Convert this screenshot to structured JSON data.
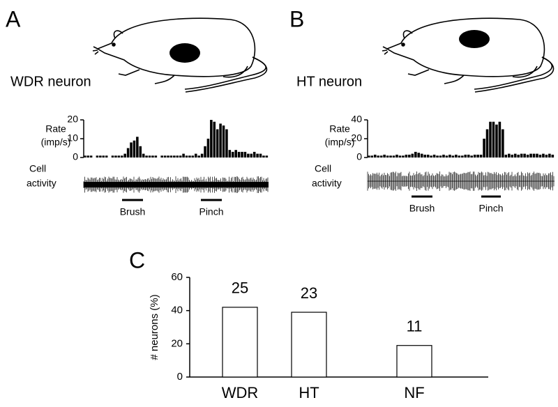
{
  "chart_data": [
    {
      "type": "bar",
      "panel": "A",
      "label": "WDR neuron",
      "ylabel": [
        "Rate",
        "(imp/s)"
      ],
      "trace_label": [
        "Cell",
        "activity"
      ],
      "stimuli": [
        "Brush",
        "Pinch"
      ],
      "color": "#000000",
      "values": [
        1,
        1,
        1,
        0,
        1,
        1,
        1,
        1,
        0,
        1,
        1,
        1,
        1,
        2,
        5,
        8,
        9,
        11,
        6,
        2,
        1,
        1,
        1,
        1,
        0,
        1,
        1,
        1,
        1,
        1,
        1,
        1,
        2,
        1,
        1,
        1,
        2,
        1,
        2,
        6,
        10,
        20,
        19,
        15,
        18,
        17,
        15,
        4,
        3,
        4,
        3,
        3,
        3,
        2,
        2,
        3,
        2,
        2,
        1,
        1
      ],
      "ylim": [
        0,
        20
      ],
      "yticks": [
        0,
        10,
        20
      ]
    },
    {
      "type": "bar",
      "panel": "B",
      "label": "HT neuron",
      "ylabel": [
        "Rate",
        "(imp/s)"
      ],
      "trace_label": [
        "Cell",
        "activity"
      ],
      "stimuli": [
        "Brush",
        "Pinch"
      ],
      "color": "#000000",
      "values": [
        2,
        2,
        3,
        2,
        2,
        3,
        2,
        2,
        2,
        3,
        2,
        2,
        3,
        3,
        4,
        6,
        5,
        4,
        3,
        3,
        2,
        3,
        2,
        2,
        3,
        2,
        3,
        2,
        3,
        2,
        2,
        3,
        3,
        2,
        3,
        3,
        3,
        20,
        30,
        38,
        38,
        35,
        38,
        30,
        3,
        4,
        3,
        4,
        3,
        4,
        4,
        3,
        4,
        4,
        4,
        3,
        4,
        3,
        4,
        3
      ],
      "ylim": [
        0,
        40
      ],
      "yticks": [
        0,
        20,
        40
      ]
    },
    {
      "type": "bar",
      "panel": "C",
      "ylabel": "# neurons (%)",
      "categories": [
        "WDR",
        "HT",
        "NF"
      ],
      "values": [
        42,
        39,
        19
      ],
      "counts": [
        25,
        23,
        11
      ],
      "color": "#ffffff",
      "ylim": [
        0,
        60
      ],
      "yticks": [
        0,
        20,
        40,
        60
      ]
    }
  ]
}
